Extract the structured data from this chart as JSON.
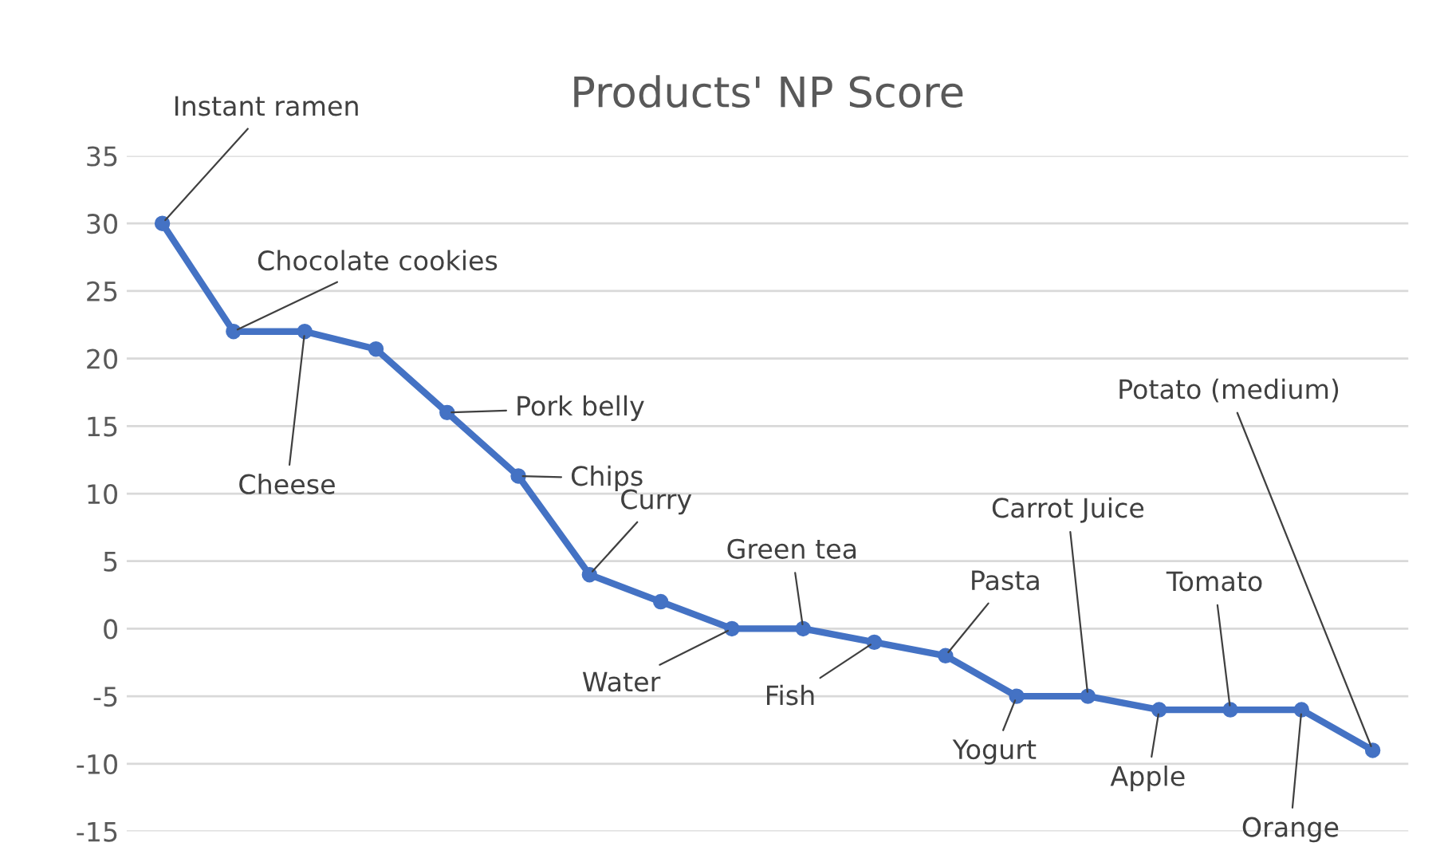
{
  "chart_data": {
    "type": "line",
    "title": "Products' NP Score",
    "categories": [
      null,
      null,
      null,
      null,
      null,
      null,
      null,
      null,
      null,
      null,
      null,
      null,
      null,
      null,
      null,
      null,
      null,
      null
    ],
    "series": [
      {
        "color": "#4472c4",
        "values": [
          30,
          22,
          22,
          20.7,
          16,
          11.3,
          4,
          2,
          0,
          0,
          -1,
          -2,
          -5,
          -5,
          -6,
          -6,
          -6,
          -9
        ]
      }
    ],
    "annotations": [
      "Instant ramen",
      "Chocolate cookies",
      "Cheese",
      "Pork belly",
      "Chips",
      "Curry",
      "Water",
      "Green tea",
      "Fish",
      "Pasta",
      "Yogurt",
      "Carrot Juice",
      "Apple",
      "Tomato",
      "Orange",
      "Potato (medium)"
    ],
    "ylim": [
      -15,
      35
    ],
    "yticks": [
      -15,
      -10,
      -5,
      0,
      5,
      10,
      15,
      20,
      25,
      30,
      35
    ],
    "grid": "y",
    "marker": "circle",
    "line_style": "solid"
  }
}
